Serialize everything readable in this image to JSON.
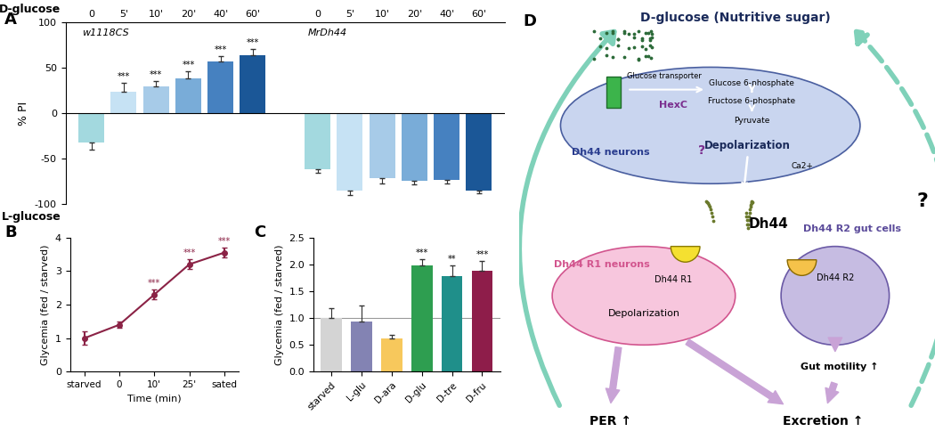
{
  "chart_data": [
    {
      "panel": "A",
      "type": "bar",
      "annotations": {
        "top": "D-glucose",
        "bottom": "L-glucose"
      },
      "y_label": "% PI",
      "categories": [
        "0",
        "5'",
        "10'",
        "20'",
        "40'",
        "60'"
      ],
      "colors": [
        "#a3d9df",
        "#c6e2f4",
        "#a7cbe8",
        "#79acd8",
        "#4681c0",
        "#1b5797"
      ],
      "series": [
        {
          "name": "w1118CS",
          "values": [
            -32,
            24,
            29,
            38,
            57,
            64
          ],
          "errors": [
            8,
            9,
            6,
            8,
            6,
            7
          ],
          "significance": [
            null,
            "***",
            "***",
            "***",
            "***",
            "***"
          ]
        },
        {
          "name": "MrDh44",
          "values": [
            -62,
            -85,
            -72,
            -75,
            -74,
            -85
          ],
          "errors": [
            4,
            5,
            6,
            4,
            4,
            3
          ],
          "significance": [
            null,
            null,
            null,
            null,
            null,
            null
          ]
        }
      ],
      "ylim": [
        -100,
        100
      ],
      "yticks": [
        -100,
        -50,
        0,
        50,
        100
      ]
    },
    {
      "panel": "B",
      "type": "line",
      "x_label": "Time (min)",
      "y_label": "Glycemia (fed / starved)",
      "categories": [
        "starved",
        "0",
        "10'",
        "25'",
        "sated"
      ],
      "values": [
        1.0,
        1.4,
        2.3,
        3.2,
        3.55
      ],
      "errors": [
        0.2,
        0.1,
        0.15,
        0.15,
        0.15
      ],
      "significance": [
        null,
        null,
        "***",
        "***",
        "***"
      ],
      "color": "#8b2346",
      "marker": "o",
      "ylim": [
        0,
        4
      ],
      "yticks": [
        0,
        1,
        2,
        3,
        4
      ]
    },
    {
      "panel": "C",
      "type": "bar",
      "y_label": "Glycemia (fed / starved)",
      "categories": [
        "starved",
        "L-glu",
        "D-ara",
        "D-glu",
        "D-tre",
        "D-fru"
      ],
      "values": [
        1.0,
        0.93,
        0.62,
        1.98,
        1.78,
        1.88
      ],
      "errors": [
        0.18,
        0.3,
        0.07,
        0.12,
        0.2,
        0.18
      ],
      "significance": [
        null,
        null,
        null,
        "***",
        "**",
        "***"
      ],
      "colors": [
        "#d4d4d4",
        "#8383b3",
        "#f7c85c",
        "#2e9e50",
        "#1f8f8a",
        "#8e1d4a"
      ],
      "reference_line": 1.0,
      "ylim": [
        0,
        2.5
      ],
      "yticks": [
        {
          "value": 0,
          "label": "0.0"
        },
        {
          "value": 0.5,
          "label": "0.5"
        },
        {
          "value": 1.0,
          "label": "1.0"
        },
        {
          "value": 1.5,
          "label": "1.5"
        },
        {
          "value": 2.0,
          "label": "2.0"
        },
        {
          "value": 2.5,
          "label": "2.5"
        }
      ]
    }
  ],
  "diagram": {
    "panel": "D",
    "title": "D-glucose (Nutritive sugar)",
    "dh44_neurons": {
      "label": "Dh44 neurons",
      "transporter": "Glucose transporter",
      "enzyme": "HexC",
      "pathway": [
        "Glucose 6-phosphate",
        "Fructose 6-phosphate",
        "Pyruvate"
      ],
      "unknown": "?",
      "event": "Depolarization",
      "ion": "Ca2+"
    },
    "peptide": "Dh44",
    "r1_neurons": {
      "label": "Dh44 R1 neurons",
      "receptor": "Dh44 R1",
      "event": "Depolarization"
    },
    "r2_gut_cells": {
      "label": "Dh44 R2 gut cells",
      "receptor": "Dh44 R2",
      "effect": "Gut motility ↑"
    },
    "outputs": [
      "PER ↑",
      "Excretion ↑"
    ],
    "feedback_unknown": "?"
  }
}
